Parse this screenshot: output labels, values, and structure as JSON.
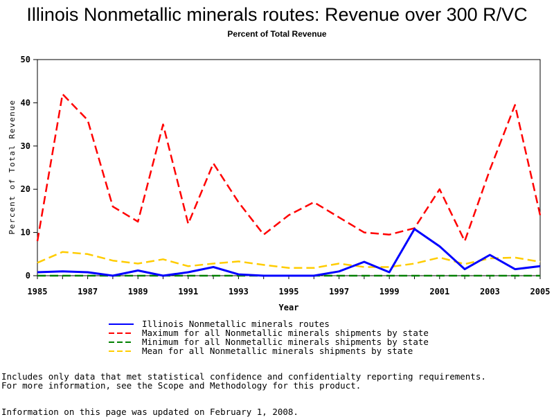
{
  "chart_data": {
    "type": "line",
    "title": "Illinois Nonmetallic minerals routes: Revenue over 300 R/VC",
    "subtitle": "Percent of Total Revenue",
    "xlabel": "Year",
    "ylabel": "Percent of Total Revenue",
    "xlim": [
      1985,
      2005
    ],
    "ylim": [
      0,
      50
    ],
    "x_ticks": [
      "1985",
      "1987",
      "1989",
      "1991",
      "1993",
      "1995",
      "1997",
      "1999",
      "2001",
      "2003",
      "2005"
    ],
    "y_ticks": [
      "0",
      "10",
      "20",
      "30",
      "40",
      "50"
    ],
    "grid": false,
    "legend_position": "bottom",
    "x": [
      1985,
      1986,
      1987,
      1988,
      1989,
      1990,
      1991,
      1992,
      1993,
      1994,
      1995,
      1996,
      1997,
      1998,
      1999,
      2000,
      2001,
      2002,
      2003,
      2004,
      2005
    ],
    "series": [
      {
        "name": "Illinois Nonmetallic minerals routes",
        "color": "#0000ff",
        "style": "solid",
        "values": [
          0.8,
          1.0,
          0.8,
          0.0,
          1.2,
          0.0,
          0.8,
          2.0,
          0.3,
          0.0,
          0.0,
          0.0,
          1.0,
          3.2,
          0.8,
          10.8,
          6.8,
          1.5,
          4.8,
          1.5,
          2.2
        ]
      },
      {
        "name": "Maximum for all Nonmetallic minerals shipments by state",
        "color": "#ff0000",
        "style": "dashed",
        "values": [
          8.0,
          42.0,
          36.0,
          16.0,
          12.5,
          35.0,
          12.0,
          26.0,
          17.0,
          9.5,
          14.0,
          17.0,
          13.5,
          10.0,
          9.5,
          11.0,
          20.0,
          8.0,
          24.5,
          39.5,
          14.0
        ]
      },
      {
        "name": "Minimum for all Nonmetallic minerals shipments by state",
        "color": "#008000",
        "style": "dashed",
        "values": [
          0,
          0,
          0,
          0,
          0,
          0,
          0,
          0,
          0,
          0,
          0,
          0,
          0,
          0,
          0,
          0,
          0,
          0,
          0,
          0,
          0
        ]
      },
      {
        "name": "Mean for all Nonmetallic minerals shipments by state",
        "color": "#ffcc00",
        "style": "dashed",
        "values": [
          3.0,
          5.5,
          5.0,
          3.5,
          2.8,
          3.8,
          2.2,
          2.8,
          3.3,
          2.5,
          1.8,
          1.8,
          2.8,
          2.0,
          2.0,
          2.8,
          4.2,
          2.7,
          4.0,
          4.2,
          3.2
        ]
      }
    ]
  },
  "notes": {
    "line1": "Includes only data that met statistical confidence and confidentialty reporting requirements.",
    "line2": "For more information, see the Scope and Methodology for this product.",
    "updated": "Information on this page was updated on February 1, 2008."
  }
}
